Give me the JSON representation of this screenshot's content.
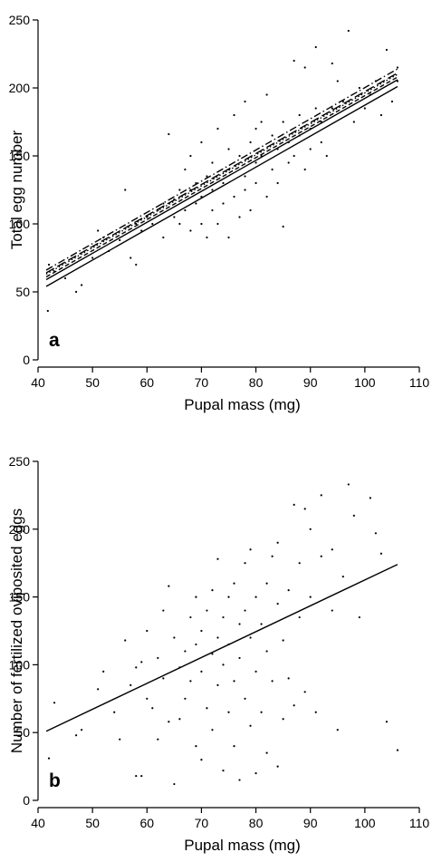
{
  "chart_data": [
    {
      "type": "scatter",
      "panel_label": "a",
      "xlabel": "Pupal mass (mg)",
      "ylabel": "Total egg number",
      "xlim": [
        40,
        110
      ],
      "ylim": [
        0,
        250
      ],
      "xticks": [
        40,
        50,
        60,
        70,
        80,
        90,
        100,
        110
      ],
      "yticks": [
        0,
        50,
        100,
        150,
        200,
        250
      ],
      "lines": [
        {
          "style": "solid",
          "x": [
            41.5,
            106
          ],
          "y": [
            54,
            201
          ]
        },
        {
          "style": "solid",
          "x": [
            41.5,
            106
          ],
          "y": [
            59,
            206
          ]
        },
        {
          "style": "dashed",
          "x": [
            41.5,
            106
          ],
          "y": [
            61,
            208
          ]
        },
        {
          "style": "dotted",
          "x": [
            41.5,
            106
          ],
          "y": [
            63,
            210
          ]
        },
        {
          "style": "dashdot",
          "x": [
            41.5,
            106
          ],
          "y": [
            66,
            214
          ]
        },
        {
          "style": "longdash",
          "x": [
            41.5,
            106
          ],
          "y": [
            64,
            211
          ]
        }
      ],
      "points": [
        [
          41.8,
          36
        ],
        [
          42,
          70
        ],
        [
          43,
          65
        ],
        [
          45,
          60
        ],
        [
          47,
          50
        ],
        [
          48,
          55
        ],
        [
          50,
          75
        ],
        [
          51,
          95
        ],
        [
          52,
          90
        ],
        [
          53,
          80
        ],
        [
          55,
          88
        ],
        [
          56,
          125
        ],
        [
          57,
          75
        ],
        [
          58,
          70
        ],
        [
          58,
          100
        ],
        [
          59,
          95
        ],
        [
          60,
          105
        ],
        [
          61,
          100
        ],
        [
          62,
          110
        ],
        [
          63,
          90
        ],
        [
          63,
          115
        ],
        [
          64,
          166
        ],
        [
          65,
          105
        ],
        [
          65,
          118
        ],
        [
          66,
          100
        ],
        [
          66,
          125
        ],
        [
          67,
          110
        ],
        [
          67,
          140
        ],
        [
          68,
          95
        ],
        [
          68,
          125
        ],
        [
          68,
          150
        ],
        [
          69,
          130
        ],
        [
          69,
          115
        ],
        [
          70,
          100
        ],
        [
          70,
          120
        ],
        [
          70,
          160
        ],
        [
          71,
          90
        ],
        [
          71,
          135
        ],
        [
          72,
          110
        ],
        [
          72,
          145
        ],
        [
          72,
          125
        ],
        [
          73,
          170
        ],
        [
          73,
          100
        ],
        [
          74,
          130
        ],
        [
          74,
          115
        ],
        [
          75,
          90
        ],
        [
          75,
          140
        ],
        [
          75,
          155
        ],
        [
          76,
          120
        ],
        [
          76,
          180
        ],
        [
          77,
          105
        ],
        [
          77,
          150
        ],
        [
          78,
          135
        ],
        [
          78,
          125
        ],
        [
          78,
          190
        ],
        [
          79,
          160
        ],
        [
          79,
          110
        ],
        [
          80,
          145
        ],
        [
          80,
          130
        ],
        [
          80,
          170
        ],
        [
          81,
          150
        ],
        [
          81,
          175
        ],
        [
          82,
          120
        ],
        [
          82,
          195
        ],
        [
          83,
          140
        ],
        [
          83,
          165
        ],
        [
          84,
          155
        ],
        [
          84,
          130
        ],
        [
          85,
          98
        ],
        [
          85,
          175
        ],
        [
          86,
          160
        ],
        [
          86,
          145
        ],
        [
          87,
          220
        ],
        [
          87,
          150
        ],
        [
          88,
          180
        ],
        [
          88,
          165
        ],
        [
          89,
          215
        ],
        [
          89,
          140
        ],
        [
          90,
          170
        ],
        [
          90,
          155
        ],
        [
          91,
          230
        ],
        [
          91,
          185
        ],
        [
          92,
          160
        ],
        [
          92,
          175
        ],
        [
          93,
          150
        ],
        [
          94,
          218
        ],
        [
          94,
          185
        ],
        [
          95,
          205
        ],
        [
          96,
          190
        ],
        [
          97,
          242
        ],
        [
          98,
          175
        ],
        [
          99,
          200
        ],
        [
          100,
          185
        ],
        [
          101,
          195
        ],
        [
          102,
          205
        ],
        [
          103,
          180
        ],
        [
          104,
          228
        ],
        [
          105,
          190
        ],
        [
          106,
          215
        ],
        [
          106,
          205
        ]
      ]
    },
    {
      "type": "scatter",
      "panel_label": "b",
      "xlabel": "Pupal mass (mg)",
      "ylabel": "Number of fertilized oviposited eggs",
      "xlim": [
        40,
        110
      ],
      "ylim": [
        0,
        250
      ],
      "xticks": [
        40,
        50,
        60,
        70,
        80,
        90,
        100,
        110
      ],
      "yticks": [
        0,
        50,
        100,
        150,
        200,
        250
      ],
      "lines": [
        {
          "style": "solid",
          "x": [
            41.5,
            106
          ],
          "y": [
            51,
            174
          ]
        }
      ],
      "points": [
        [
          42,
          31
        ],
        [
          43,
          72
        ],
        [
          47,
          48
        ],
        [
          48,
          52
        ],
        [
          51,
          82
        ],
        [
          52,
          95
        ],
        [
          54,
          65
        ],
        [
          55,
          45
        ],
        [
          56,
          118
        ],
        [
          57,
          85
        ],
        [
          58,
          18
        ],
        [
          58,
          98
        ],
        [
          59,
          102
        ],
        [
          59,
          18
        ],
        [
          60,
          75
        ],
        [
          60,
          125
        ],
        [
          61,
          68
        ],
        [
          62,
          45
        ],
        [
          62,
          105
        ],
        [
          63,
          90
        ],
        [
          63,
          140
        ],
        [
          64,
          158
        ],
        [
          64,
          58
        ],
        [
          65,
          12
        ],
        [
          65,
          120
        ],
        [
          66,
          98
        ],
        [
          66,
          60
        ],
        [
          67,
          110
        ],
        [
          67,
          75
        ],
        [
          68,
          135
        ],
        [
          68,
          88
        ],
        [
          69,
          40
        ],
        [
          69,
          115
        ],
        [
          69,
          150
        ],
        [
          70,
          125
        ],
        [
          70,
          30
        ],
        [
          70,
          95
        ],
        [
          71,
          140
        ],
        [
          71,
          68
        ],
        [
          72,
          108
        ],
        [
          72,
          155
        ],
        [
          72,
          52
        ],
        [
          73,
          120
        ],
        [
          73,
          85
        ],
        [
          73,
          178
        ],
        [
          74,
          22
        ],
        [
          74,
          135
        ],
        [
          74,
          100
        ],
        [
          75,
          65
        ],
        [
          75,
          150
        ],
        [
          75,
          115
        ],
        [
          76,
          40
        ],
        [
          76,
          160
        ],
        [
          76,
          88
        ],
        [
          77,
          130
        ],
        [
          77,
          15
        ],
        [
          77,
          105
        ],
        [
          78,
          175
        ],
        [
          78,
          75
        ],
        [
          78,
          140
        ],
        [
          79,
          55
        ],
        [
          79,
          120
        ],
        [
          79,
          185
        ],
        [
          80,
          95
        ],
        [
          80,
          20
        ],
        [
          80,
          150
        ],
        [
          81,
          65
        ],
        [
          81,
          130
        ],
        [
          82,
          160
        ],
        [
          82,
          35
        ],
        [
          82,
          110
        ],
        [
          83,
          180
        ],
        [
          83,
          88
        ],
        [
          84,
          145
        ],
        [
          84,
          25
        ],
        [
          84,
          190
        ],
        [
          85,
          118
        ],
        [
          85,
          60
        ],
        [
          86,
          155
        ],
        [
          86,
          90
        ],
        [
          87,
          218
        ],
        [
          87,
          70
        ],
        [
          88,
          175
        ],
        [
          88,
          135
        ],
        [
          89,
          215
        ],
        [
          89,
          80
        ],
        [
          90,
          200
        ],
        [
          90,
          150
        ],
        [
          91,
          65
        ],
        [
          92,
          225
        ],
        [
          92,
          180
        ],
        [
          94,
          140
        ],
        [
          94,
          185
        ],
        [
          95,
          52
        ],
        [
          96,
          165
        ],
        [
          97,
          233
        ],
        [
          98,
          210
        ],
        [
          99,
          135
        ],
        [
          101,
          223
        ],
        [
          102,
          197
        ],
        [
          103,
          182
        ],
        [
          104,
          58
        ],
        [
          106,
          37
        ]
      ]
    }
  ]
}
